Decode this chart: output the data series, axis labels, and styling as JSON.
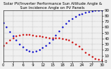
{
  "title": "Solar PV/Inverter Performance Sun Altitude Angle & Sun Incidence Angle on PV Panels",
  "blue_x": [
    0,
    1,
    2,
    3,
    4,
    5,
    6,
    7,
    8,
    9,
    10,
    11,
    12,
    13,
    14,
    15,
    16,
    17,
    18,
    19,
    20,
    21,
    22,
    23,
    24,
    25,
    26,
    27,
    28,
    29,
    30
  ],
  "blue_y": [
    68,
    60,
    52,
    44,
    37,
    30,
    25,
    20,
    18,
    17,
    18,
    20,
    24,
    28,
    33,
    39,
    46,
    53,
    60,
    66,
    71,
    75,
    79,
    82,
    84,
    86,
    87,
    88,
    89,
    89,
    90
  ],
  "red_x": [
    0,
    1,
    2,
    3,
    4,
    5,
    6,
    7,
    8,
    9,
    10,
    11,
    12,
    13,
    14,
    15,
    16,
    17,
    18,
    19,
    20,
    21,
    22,
    23,
    24,
    25,
    26,
    27,
    28,
    29,
    30
  ],
  "red_y": [
    28,
    33,
    37,
    41,
    44,
    46,
    47,
    47,
    47,
    46,
    45,
    44,
    43,
    42,
    41,
    41,
    41,
    41,
    40,
    39,
    37,
    34,
    30,
    26,
    21,
    16,
    12,
    8,
    5,
    3,
    2
  ],
  "ylim": [
    0,
    90
  ],
  "xlim": [
    0,
    30
  ],
  "ytick_vals": [
    0,
    10,
    20,
    30,
    40,
    50,
    60,
    70,
    80,
    90
  ],
  "ytick_labels": [
    "0",
    "10",
    "20",
    "30",
    "40",
    "50",
    "60",
    "70",
    "80",
    "90"
  ],
  "xtick_vals": [
    0,
    3,
    6,
    9,
    12,
    15,
    18,
    21,
    24,
    27,
    30
  ],
  "xtick_labels": [
    "0",
    "3",
    "6",
    "9",
    "12",
    "15",
    "18",
    "21",
    "24",
    "27",
    "30"
  ],
  "blue_color": "#0000cc",
  "red_color": "#cc0000",
  "bg_color": "#f0f0f0",
  "grid_color": "#999999",
  "title_fontsize": 4,
  "tick_fontsize": 4,
  "marker_size": 1.5,
  "figwidth": 1.6,
  "figheight": 1.0,
  "dpi": 100
}
